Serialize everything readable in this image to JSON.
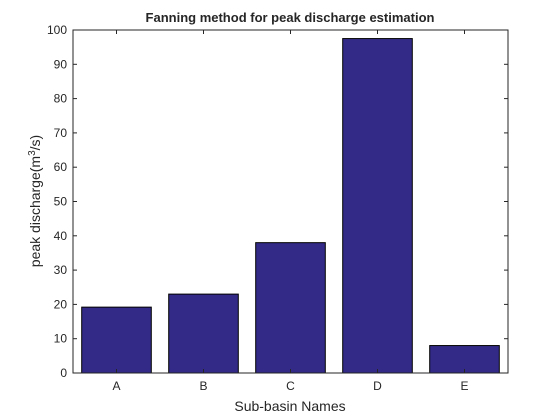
{
  "chart_data": {
    "type": "bar",
    "title": "Fanning method for peak discharge estimation",
    "xlabel": "Sub-basin Names",
    "ylabel": "peak discharge(m",
    "ylabel_sup": "3",
    "ylabel_tail": "/s)",
    "categories": [
      "A",
      "B",
      "C",
      "D",
      "E"
    ],
    "values": [
      19.2,
      23.0,
      38.0,
      97.5,
      8.0
    ],
    "ylim": [
      0,
      100
    ],
    "yticks": [
      0,
      10,
      20,
      30,
      40,
      50,
      60,
      70,
      80,
      90,
      100
    ],
    "grid": false,
    "legend": "none",
    "bar_color": "#332a87",
    "bar_edge_color": "#000000"
  }
}
